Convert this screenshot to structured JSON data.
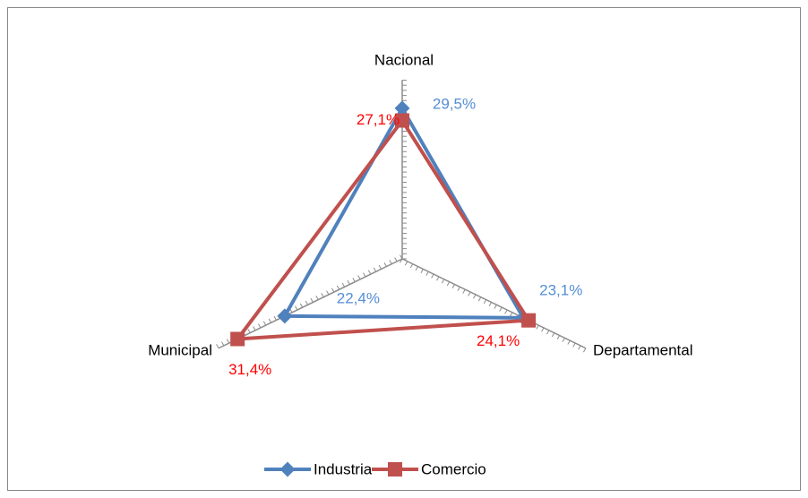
{
  "chart_data": {
    "type": "radar",
    "categories": [
      "Nacional",
      "Departamental",
      "Municipal"
    ],
    "series": [
      {
        "name": "Industria",
        "color": "#4f81bd",
        "label_color": "#558ed5",
        "values": [
          29.5,
          23.1,
          22.4
        ],
        "value_labels": [
          "29,5%",
          "23,1%",
          "22,4%"
        ]
      },
      {
        "name": "Comercio",
        "color": "#c0504d",
        "label_color": "#ff0000",
        "values": [
          27.1,
          24.1,
          31.4
        ],
        "value_labels": [
          "27,1%",
          "24,1%",
          "31,4%"
        ]
      }
    ],
    "ylim": [
      0,
      35
    ],
    "yticks": [
      0,
      1,
      2,
      3,
      4,
      5,
      6,
      7,
      8,
      9,
      10,
      11,
      12,
      13,
      14,
      15,
      16,
      17,
      18,
      19,
      20,
      21,
      22,
      23,
      24,
      25,
      26,
      27,
      28,
      29,
      30,
      31,
      32,
      33,
      34,
      35
    ],
    "legend": "bottom"
  }
}
